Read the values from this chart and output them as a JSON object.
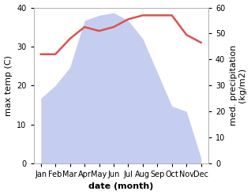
{
  "months": [
    "Jan",
    "Feb",
    "Mar",
    "Apr",
    "May",
    "Jun",
    "Jul",
    "Aug",
    "Sep",
    "Oct",
    "Nov",
    "Dec"
  ],
  "month_indices": [
    0,
    1,
    2,
    3,
    4,
    5,
    6,
    7,
    8,
    9,
    10,
    11
  ],
  "temperature": [
    28,
    28,
    32,
    35,
    34,
    35,
    37,
    38,
    38,
    38,
    33,
    31
  ],
  "precipitation": [
    25,
    30,
    37,
    55,
    57,
    58,
    55,
    48,
    35,
    22,
    20,
    2
  ],
  "temp_color": "#d9534f",
  "precip_fill_color": "#c5cef0",
  "ylabel_left": "max temp (C)",
  "ylabel_right": "med. precipitation\n(kg/m2)",
  "xlabel": "date (month)",
  "ylim_left": [
    0,
    40
  ],
  "ylim_right": [
    0,
    60
  ],
  "yticks_left": [
    0,
    10,
    20,
    30,
    40
  ],
  "yticks_right": [
    0,
    10,
    20,
    30,
    40,
    50,
    60
  ],
  "background_color": "#ffffff",
  "line_width": 1.8,
  "xlabel_fontsize": 8,
  "ylabel_fontsize": 8,
  "tick_fontsize": 7
}
